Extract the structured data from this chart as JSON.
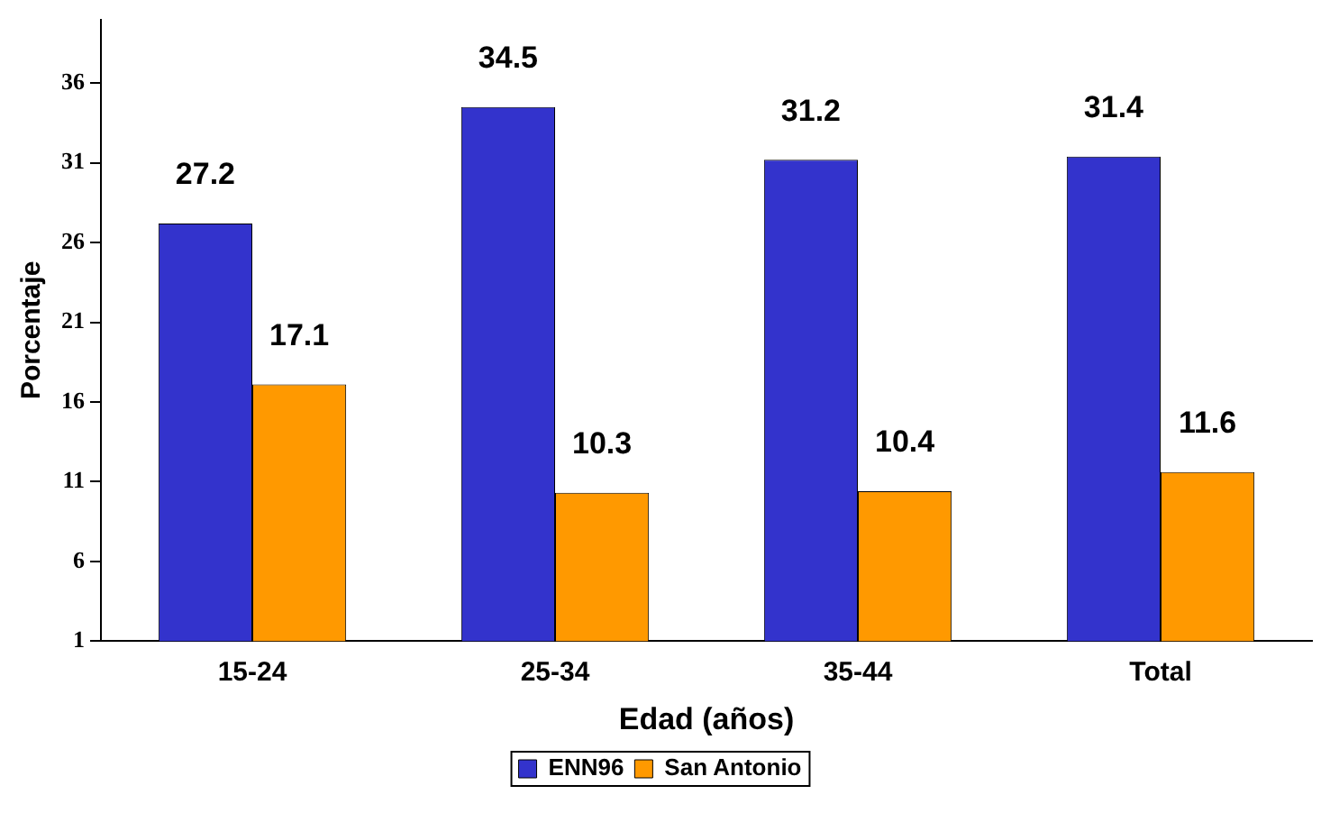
{
  "chart_data": {
    "type": "bar",
    "xlabel": "Edad (años)",
    "ylabel": "Porcentaje",
    "categories": [
      "15-24",
      "25-34",
      "35-44",
      "Total"
    ],
    "series": [
      {
        "name": "ENN96",
        "color": "#3333cc",
        "values": [
          27.2,
          34.5,
          31.2,
          31.4
        ]
      },
      {
        "name": "San Antonio",
        "color": "#ff9900",
        "values": [
          17.1,
          10.3,
          10.4,
          11.6
        ]
      }
    ],
    "ylim": [
      1,
      40
    ],
    "yticks": [
      1,
      6,
      11,
      16,
      21,
      26,
      31,
      36
    ],
    "grid": false,
    "legend": "bottom",
    "data_labels": true
  }
}
